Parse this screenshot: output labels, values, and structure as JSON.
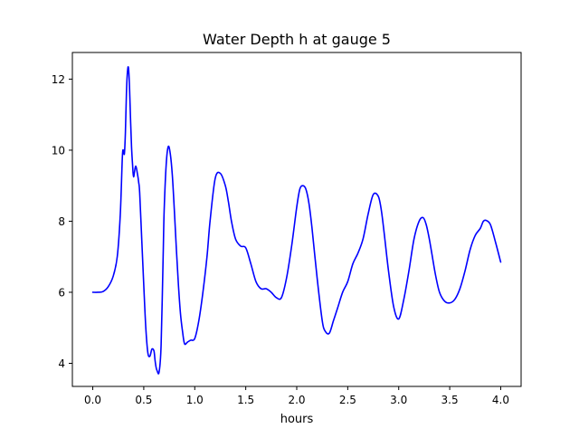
{
  "chart_data": {
    "type": "line",
    "title": "Water Depth h at gauge 5",
    "xlabel": "hours",
    "ylabel": "",
    "xlim": [
      -0.2,
      4.2
    ],
    "ylim": [
      3.35,
      12.75
    ],
    "xticks": [
      "0.0",
      "0.5",
      "1.0",
      "1.5",
      "2.0",
      "2.5",
      "3.0",
      "3.5",
      "4.0"
    ],
    "yticks": [
      "4",
      "6",
      "8",
      "10",
      "12"
    ],
    "grid": false,
    "legend": "none",
    "series": [
      {
        "color": "#0000ff",
        "x": [
          0.0,
          0.05,
          0.1,
          0.15,
          0.2,
          0.24,
          0.27,
          0.29,
          0.3,
          0.31,
          0.32,
          0.33,
          0.34,
          0.35,
          0.36,
          0.37,
          0.38,
          0.39,
          0.4,
          0.42,
          0.44,
          0.45,
          0.46,
          0.48,
          0.5,
          0.52,
          0.54,
          0.56,
          0.58,
          0.6,
          0.61,
          0.62,
          0.63,
          0.65,
          0.67,
          0.69,
          0.7,
          0.72,
          0.74,
          0.76,
          0.78,
          0.8,
          0.82,
          0.84,
          0.86,
          0.88,
          0.9,
          0.93,
          0.96,
          1.0,
          1.04,
          1.08,
          1.12,
          1.15,
          1.2,
          1.25,
          1.3,
          1.33,
          1.36,
          1.4,
          1.45,
          1.5,
          1.55,
          1.6,
          1.65,
          1.7,
          1.75,
          1.8,
          1.85,
          1.9,
          1.95,
          2.0,
          2.03,
          2.06,
          2.09,
          2.12,
          2.15,
          2.2,
          2.25,
          2.28,
          2.32,
          2.36,
          2.4,
          2.45,
          2.5,
          2.55,
          2.6,
          2.65,
          2.7,
          2.75,
          2.8,
          2.83,
          2.86,
          2.9,
          2.95,
          3.0,
          3.05,
          3.1,
          3.15,
          3.2,
          3.24,
          3.27,
          3.3,
          3.33,
          3.36,
          3.4,
          3.45,
          3.5,
          3.55,
          3.6,
          3.65,
          3.7,
          3.75,
          3.8,
          3.83,
          3.86,
          3.9,
          3.95,
          4.0
        ],
        "y": [
          6.0,
          6.0,
          6.02,
          6.15,
          6.45,
          7.0,
          8.2,
          9.8,
          10.0,
          9.9,
          10.5,
          11.6,
          12.2,
          12.32,
          11.8,
          10.9,
          10.1,
          9.6,
          9.25,
          9.55,
          9.3,
          9.1,
          8.8,
          7.5,
          6.2,
          5.0,
          4.3,
          4.2,
          4.4,
          4.35,
          4.1,
          3.9,
          3.8,
          3.75,
          4.5,
          7.0,
          8.3,
          9.6,
          10.1,
          9.9,
          9.3,
          8.3,
          7.2,
          6.2,
          5.4,
          4.9,
          4.55,
          4.6,
          4.65,
          4.7,
          5.2,
          6.0,
          7.0,
          8.0,
          9.2,
          9.35,
          9.0,
          8.55,
          8.0,
          7.5,
          7.3,
          7.25,
          6.8,
          6.3,
          6.1,
          6.1,
          6.0,
          5.85,
          5.85,
          6.4,
          7.3,
          8.4,
          8.9,
          9.0,
          8.9,
          8.5,
          7.8,
          6.4,
          5.2,
          4.9,
          4.85,
          5.2,
          5.55,
          6.0,
          6.3,
          6.8,
          7.1,
          7.5,
          8.2,
          8.75,
          8.7,
          8.3,
          7.6,
          6.6,
          5.6,
          5.25,
          5.8,
          6.6,
          7.5,
          8.0,
          8.1,
          7.9,
          7.5,
          7.0,
          6.5,
          6.0,
          5.75,
          5.7,
          5.8,
          6.1,
          6.6,
          7.2,
          7.6,
          7.8,
          8.0,
          8.02,
          7.9,
          7.4,
          6.85
        ]
      }
    ]
  }
}
